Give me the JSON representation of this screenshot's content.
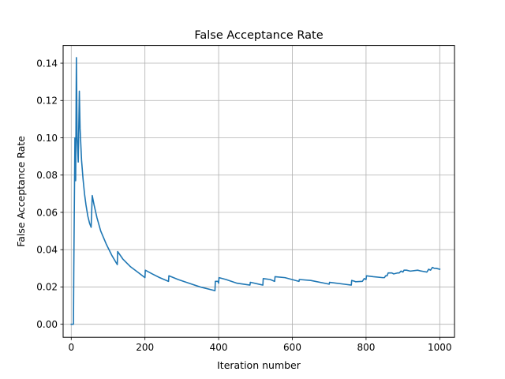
{
  "chart_data": {
    "type": "line",
    "title": "False Acceptance Rate",
    "xlabel": "Iteration number",
    "ylabel": "False Acceptance Rate",
    "xlim": [
      -22,
      1040
    ],
    "ylim": [
      -0.007,
      0.1495
    ],
    "xticks": [
      0,
      200,
      400,
      600,
      800,
      1000
    ],
    "xtick_labels": [
      "0",
      "200",
      "400",
      "600",
      "800",
      "1000"
    ],
    "yticks": [
      0.0,
      0.02,
      0.04,
      0.06,
      0.08,
      0.1,
      0.12,
      0.14
    ],
    "ytick_labels": [
      "0.00",
      "0.02",
      "0.04",
      "0.06",
      "0.08",
      "0.10",
      "0.12",
      "0.14"
    ],
    "grid": true,
    "line_color": "#1f77b4",
    "series": [
      {
        "x": [
          0,
          6,
          7,
          10,
          12,
          14,
          16,
          19,
          22,
          24,
          28,
          32,
          36,
          40,
          45,
          50,
          54,
          57,
          62,
          70,
          80,
          95,
          110,
          125,
          126,
          140,
          160,
          180,
          200,
          201,
          220,
          240,
          264,
          265,
          290,
          320,
          350,
          390,
          391,
          398,
          400,
          401,
          420,
          450,
          485,
          486,
          520,
          521,
          540,
          552,
          553,
          580,
          618,
          619,
          650,
          700,
          701,
          740,
          760,
          761,
          770,
          771,
          790,
          795,
          800,
          801,
          820,
          845,
          850,
          853,
          857,
          860,
          870,
          875,
          885,
          890,
          895,
          900,
          903,
          910,
          920,
          940,
          950,
          951,
          965,
          970,
          975,
          980,
          985,
          990,
          1000
        ],
        "y": [
          0.0,
          0.0,
          0.03,
          0.1,
          0.077,
          0.143,
          0.1,
          0.087,
          0.125,
          0.105,
          0.088,
          0.078,
          0.07,
          0.064,
          0.058,
          0.054,
          0.052,
          0.069,
          0.064,
          0.057,
          0.05,
          0.043,
          0.037,
          0.032,
          0.039,
          0.035,
          0.031,
          0.028,
          0.025,
          0.029,
          0.027,
          0.025,
          0.023,
          0.026,
          0.024,
          0.022,
          0.02,
          0.018,
          0.023,
          0.023,
          0.022,
          0.025,
          0.024,
          0.022,
          0.021,
          0.0225,
          0.021,
          0.0245,
          0.024,
          0.023,
          0.0255,
          0.025,
          0.023,
          0.024,
          0.0235,
          0.0215,
          0.0225,
          0.0215,
          0.021,
          0.0235,
          0.023,
          0.0228,
          0.023,
          0.0245,
          0.024,
          0.026,
          0.0255,
          0.025,
          0.025,
          0.026,
          0.026,
          0.0275,
          0.0275,
          0.027,
          0.0275,
          0.0275,
          0.0285,
          0.028,
          0.029,
          0.029,
          0.0285,
          0.029,
          0.0285,
          0.0285,
          0.028,
          0.0295,
          0.029,
          0.0305,
          0.03,
          0.03,
          0.0295
        ]
      }
    ]
  }
}
